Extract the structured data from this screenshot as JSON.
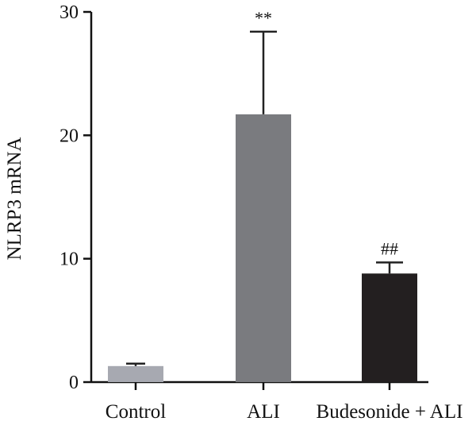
{
  "chart_data": {
    "type": "bar",
    "title": "",
    "xlabel": "",
    "ylabel": "NLRP3 mRNA",
    "ylim": [
      0,
      30
    ],
    "yticks": [
      0,
      10,
      20,
      30
    ],
    "grid": false,
    "categories": [
      "Control",
      "ALI",
      "Budesonide + ALI"
    ],
    "values": [
      1.3,
      21.7,
      8.8
    ],
    "errors": [
      0.2,
      6.7,
      0.9
    ],
    "colors": [
      "#a7a9b1",
      "#7a7b7f",
      "#231f20"
    ],
    "annotations": [
      "",
      "**",
      "##"
    ]
  }
}
